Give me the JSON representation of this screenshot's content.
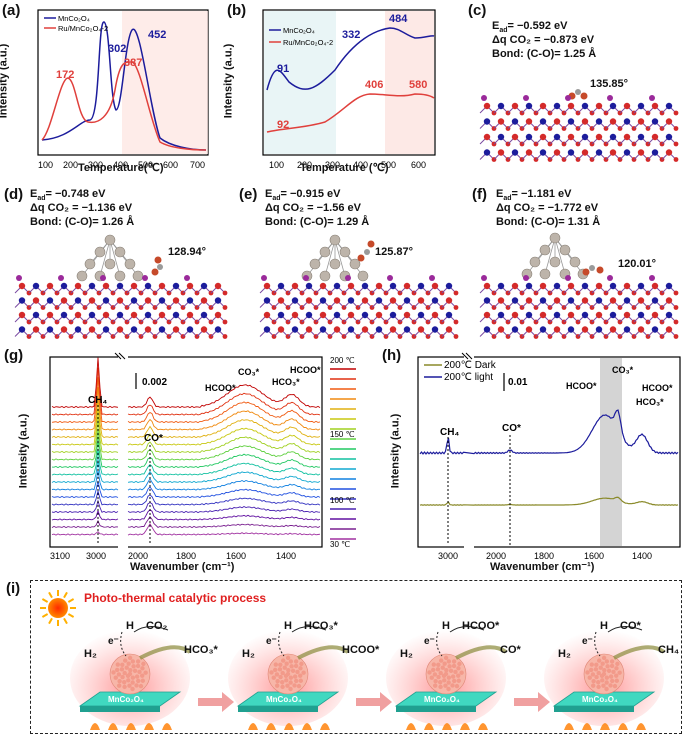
{
  "panels": {
    "a": {
      "label": "(a)",
      "ylabel": "Intensity (a.u.)",
      "xlabel": "Temperature(℃)",
      "ticks": [
        "100",
        "200",
        "300",
        "400",
        "500",
        "600",
        "700"
      ],
      "legend": [
        "MnCo₂O₄",
        "Ru/MnCo₂O₄-2"
      ],
      "peaks": {
        "p172": "172",
        "p302": "302",
        "p387": "387",
        "p452": "452"
      }
    },
    "b": {
      "label": "(b)",
      "ylabel": "Intensity (a.u.)",
      "xlabel": "Temperature (℃)",
      "ticks": [
        "100",
        "200",
        "300",
        "400",
        "500",
        "600"
      ],
      "legend": [
        "MnCo₂O₄",
        "Ru/MnCo₂O₄-2"
      ],
      "peaks": {
        "p91": "91",
        "p332": "332",
        "p484": "484",
        "p92": "92",
        "p406": "406",
        "p580": "580"
      }
    },
    "c": {
      "label": "(c)",
      "e": "E",
      "esub": "ad",
      "eval": "= −0.592 eV",
      "dq": "Δq CO₂ = −0.873 eV",
      "bond": "Bond: (C-O)= 1.25 Å",
      "angle": "135.85°"
    },
    "d": {
      "label": "(d)",
      "e": "E",
      "esub": "ad",
      "eval": "= −0.748 eV",
      "dq": "Δq CO₂ = −1.136 eV",
      "bond": "Bond: (C-O)= 1.26 Å",
      "angle": "128.94°"
    },
    "e": {
      "label": "(e)",
      "e": "E",
      "esub": "ad",
      "eval": "= −0.915 eV",
      "dq": "Δq CO₂ = −1.56 eV",
      "bond": "Bond: (C-O)= 1.29 Å",
      "angle": "125.87°"
    },
    "f": {
      "label": "(f)",
      "e": "E",
      "esub": "ad",
      "eval": "= −1.181 eV",
      "dq": "Δq CO₂ = −1.772 eV",
      "bond": "Bond: (C-O)= 1.31 Å",
      "angle": "120.01°"
    },
    "g": {
      "label": "(g)",
      "ylabel": "Intensity (a.u.)",
      "xlabel": "Wavenumber (cm⁻¹)",
      "ticks": [
        "3100",
        "3000",
        "2000",
        "1800",
        "1600",
        "1400"
      ],
      "scale": "0.002",
      "ch4": "CH₄",
      "co": "CO*",
      "hcoo1": "HCOO*",
      "co3": "CO₃*",
      "hco3": "HCO₃*",
      "hcoo2": "HCOO*",
      "temps": [
        "200 ℃",
        "150 ℃",
        "100 ℃",
        "30 ℃"
      ]
    },
    "h": {
      "label": "(h)",
      "ylabel": "Intensity (a.u.)",
      "xlabel": "Wavenumber (cm⁻¹)",
      "ticks": [
        "3000",
        "2000",
        "1800",
        "1600",
        "1400"
      ],
      "legend": [
        "200℃ Dark",
        "200℃ light"
      ],
      "scale": "0.01",
      "ch4": "CH₄",
      "co": "CO*",
      "hcoo1": "HCOO*",
      "co3": "CO₃*",
      "hcoo2": "HCOO*",
      "hco3": "HCO₃*"
    },
    "i": {
      "label": "(i)",
      "title": "Photo-thermal catalytic process",
      "steps": [
        {
          "h": "H",
          "e": "e⁻",
          "h2": "H₂",
          "a": "CO₂",
          "b": "HCO₃*",
          "sub": "MnCo₂O₄"
        },
        {
          "h": "H",
          "e": "e⁻",
          "h2": "H₂",
          "a": "HCO₃*",
          "b": "HCOO*",
          "sub": "MnCo₂O₄"
        },
        {
          "h": "H",
          "e": "e⁻",
          "h2": "H₂",
          "a": "HCOO*",
          "b": "CO*",
          "sub": "MnCo₂O₄"
        },
        {
          "h": "H",
          "e": "e⁻",
          "h2": "H₂",
          "a": "CO*",
          "b": "CH₄",
          "sub": "MnCo₂O₄"
        }
      ]
    }
  },
  "colors": {
    "blue": "#1c1c9c",
    "red": "#e0403c",
    "olive": "#8a8a2a"
  }
}
